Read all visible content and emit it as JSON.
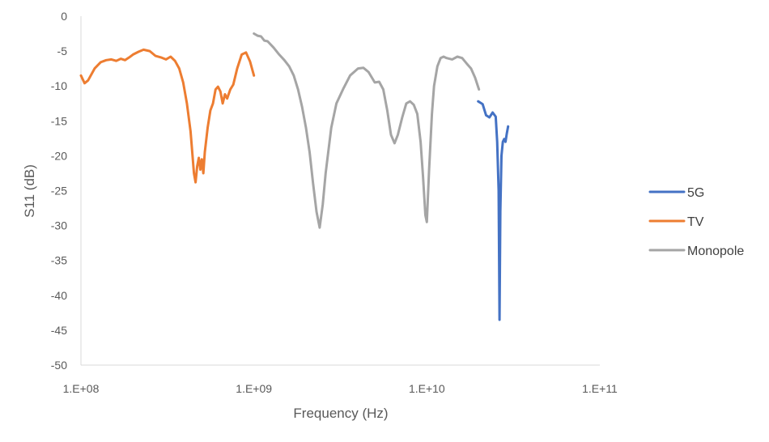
{
  "chart_data": {
    "type": "line",
    "title": "",
    "xlabel": "Frequency (Hz)",
    "ylabel": "S11 (dB)",
    "x_scale": "log",
    "xlim": [
      100000000,
      100000000000
    ],
    "ylim": [
      -50,
      0
    ],
    "x_ticks": [
      100000000,
      1000000000,
      10000000000,
      100000000000
    ],
    "x_tick_labels": [
      "1.E+08",
      "1.E+09",
      "1.E+10",
      "1.E+11"
    ],
    "y_ticks": [
      0,
      -5,
      -10,
      -15,
      -20,
      -25,
      -30,
      -35,
      -40,
      -45,
      -50
    ],
    "y_tick_labels": [
      "0",
      "-5",
      "-10",
      "-15",
      "-20",
      "-25",
      "-30",
      "-35",
      "-40",
      "-45",
      "-50"
    ],
    "grid": false,
    "legend_position": "right",
    "series": [
      {
        "name": "5G",
        "color": "#4472C4",
        "x": [
          19800000000,
          21000000000,
          22000000000,
          23000000000,
          24000000000,
          25000000000,
          25500000000,
          26000000000,
          26300000000,
          26600000000,
          27000000000,
          27500000000,
          28000000000,
          28500000000,
          29000000000,
          29500000000
        ],
        "y": [
          -12.2,
          -12.6,
          -14.2,
          -14.5,
          -13.8,
          -14.4,
          -18.0,
          -25.0,
          -43.5,
          -28.0,
          -20.0,
          -18.0,
          -17.6,
          -18.0,
          -16.8,
          -15.8
        ]
      },
      {
        "name": "TV",
        "color": "#ED7D31",
        "x": [
          100000000,
          105000000,
          110000000,
          120000000,
          130000000,
          140000000,
          150000000,
          160000000,
          170000000,
          180000000,
          190000000,
          200000000,
          215000000,
          230000000,
          250000000,
          270000000,
          290000000,
          310000000,
          330000000,
          350000000,
          370000000,
          390000000,
          410000000,
          430000000,
          450000000,
          460000000,
          470000000,
          480000000,
          490000000,
          500000000,
          510000000,
          520000000,
          540000000,
          560000000,
          580000000,
          600000000,
          620000000,
          640000000,
          660000000,
          680000000,
          700000000,
          730000000,
          760000000,
          800000000,
          850000000,
          900000000,
          950000000,
          1000000000
        ],
        "y": [
          -8.5,
          -9.6,
          -9.2,
          -7.5,
          -6.6,
          -6.3,
          -6.2,
          -6.4,
          -6.1,
          -6.3,
          -5.9,
          -5.5,
          -5.1,
          -4.8,
          -5.0,
          -5.7,
          -5.9,
          -6.2,
          -5.8,
          -6.4,
          -7.5,
          -9.5,
          -12.5,
          -16.5,
          -22.5,
          -23.8,
          -21.5,
          -20.3,
          -22.0,
          -20.5,
          -22.5,
          -19.5,
          -16.0,
          -13.5,
          -12.5,
          -10.5,
          -10.1,
          -10.8,
          -12.5,
          -11.2,
          -11.8,
          -10.5,
          -9.8,
          -7.5,
          -5.5,
          -5.2,
          -6.5,
          -8.5
        ]
      },
      {
        "name": "Monopole",
        "color": "#A5A5A5",
        "x": [
          1000000000,
          1050000000,
          1100000000,
          1150000000,
          1200000000,
          1300000000,
          1400000000,
          1500000000,
          1600000000,
          1700000000,
          1800000000,
          1900000000,
          2000000000,
          2100000000,
          2200000000,
          2300000000,
          2400000000,
          2500000000,
          2600000000,
          2800000000,
          3000000000,
          3300000000,
          3600000000,
          4000000000,
          4300000000,
          4600000000,
          5000000000,
          5300000000,
          5600000000,
          5900000000,
          6200000000,
          6500000000,
          6800000000,
          7200000000,
          7600000000,
          8000000000,
          8400000000,
          8800000000,
          9200000000,
          9500000000,
          9800000000,
          10000000000,
          10300000000,
          10700000000,
          11000000000,
          11500000000,
          12000000000,
          12500000000,
          13000000000,
          14000000000,
          15000000000,
          16000000000,
          17000000000,
          18000000000,
          19000000000,
          20000000000
        ],
        "y": [
          -2.5,
          -2.8,
          -2.9,
          -3.5,
          -3.6,
          -4.5,
          -5.5,
          -6.3,
          -7.2,
          -8.5,
          -10.5,
          -13.0,
          -16.0,
          -19.5,
          -24.0,
          -28.0,
          -30.3,
          -27.0,
          -22.5,
          -16.0,
          -12.5,
          -10.3,
          -8.5,
          -7.5,
          -7.4,
          -8.0,
          -9.5,
          -9.4,
          -10.5,
          -13.5,
          -17.0,
          -18.2,
          -17.0,
          -14.5,
          -12.5,
          -12.2,
          -12.7,
          -14.0,
          -18.0,
          -23.0,
          -28.5,
          -29.5,
          -22.0,
          -14.0,
          -10.0,
          -7.2,
          -6.0,
          -5.8,
          -6.0,
          -6.2,
          -5.8,
          -6.0,
          -6.8,
          -7.5,
          -8.8,
          -10.5
        ]
      }
    ]
  }
}
